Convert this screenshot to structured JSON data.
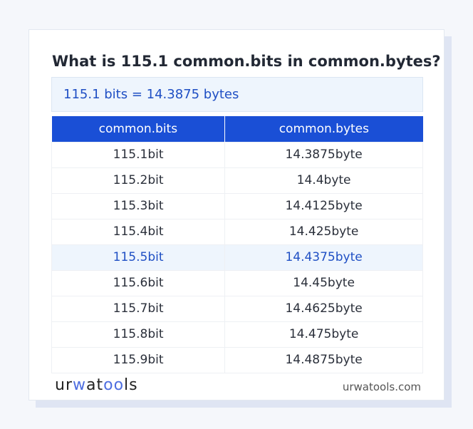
{
  "title": "What is 115.1 common.bits in common.bytes?",
  "result": "115.1 bits = 14.3875 bytes",
  "table": {
    "headers": [
      "common.bits",
      "common.bytes"
    ],
    "rows": [
      [
        "115.1bit",
        "14.3875byte"
      ],
      [
        "115.2bit",
        "14.4byte"
      ],
      [
        "115.3bit",
        "14.4125byte"
      ],
      [
        "115.4bit",
        "14.425byte"
      ],
      [
        "115.5bit",
        "14.4375byte"
      ],
      [
        "115.6bit",
        "14.45byte"
      ],
      [
        "115.7bit",
        "14.4625byte"
      ],
      [
        "115.8bit",
        "14.475byte"
      ],
      [
        "115.9bit",
        "14.4875byte"
      ]
    ],
    "highlighted_row": 4
  },
  "footer": {
    "logo": "urwatools",
    "site": "urwatools.com"
  },
  "colors": {
    "accent": "#1a4fd6",
    "highlight_bg": "#eef5fd"
  }
}
